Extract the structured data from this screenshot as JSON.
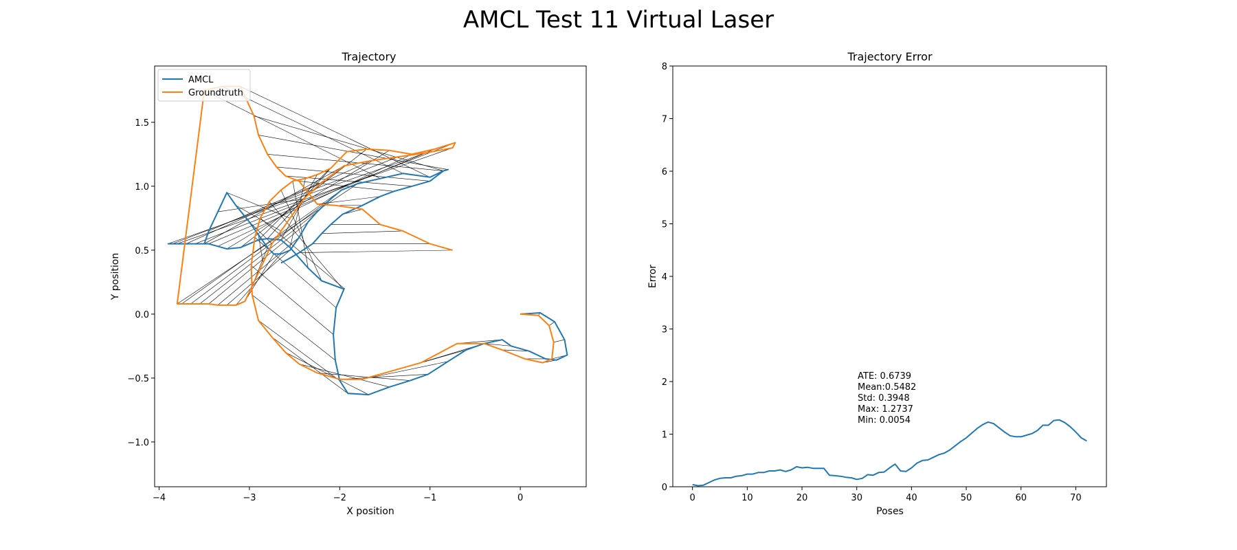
{
  "figure": {
    "title": "AMCL Test 11 Virtual Laser"
  },
  "chart_data": [
    {
      "type": "line",
      "title": "Trajectory",
      "xlabel": "X position",
      "ylabel": "Y position",
      "xlim": [
        -4.05,
        0.73
      ],
      "ylim": [
        -1.35,
        1.94
      ],
      "xticks": [
        -4,
        -3,
        -2,
        -1,
        0
      ],
      "yticks": [
        -1.0,
        -0.5,
        0.0,
        0.5,
        1.0,
        1.5
      ],
      "xtick_labels": [
        "−4",
        "−3",
        "−2",
        "−1",
        "0"
      ],
      "ytick_labels": [
        "−1.0",
        "−0.5",
        "0.0",
        "0.5",
        "1.0",
        "1.5"
      ],
      "grid": false,
      "legend": {
        "placement": "top-left",
        "entries": [
          "AMCL",
          "Groundtruth"
        ]
      },
      "series": [
        {
          "name": "AMCL",
          "color": "#1f77b4",
          "x": [
            0.0,
            0.22,
            0.38,
            0.49,
            0.52,
            0.4,
            0.28,
            0.1,
            -0.1,
            -0.2,
            -0.4,
            -0.6,
            -0.8,
            -1.02,
            -1.22,
            -1.45,
            -1.68,
            -1.91,
            -2.0,
            -2.05,
            -2.07,
            -2.04,
            -1.95,
            -1.97,
            -2.2,
            -2.35,
            -2.55,
            -2.65,
            -2.8,
            -2.9,
            -3.1,
            -3.25,
            -3.35,
            -3.45,
            -3.6,
            -3.8,
            -3.9,
            -3.85,
            -3.7,
            -3.5,
            -3.45,
            -3.35,
            -3.25,
            -3.15,
            -3.0,
            -2.9,
            -2.8,
            -2.73,
            -2.65,
            -2.55,
            -2.45,
            -2.35,
            -2.25,
            -2.1,
            -1.98,
            -1.8,
            -1.55,
            -1.3,
            -1.0,
            -0.85,
            -0.8,
            -0.85,
            -1.0,
            -1.2,
            -1.4,
            -1.55,
            -1.75,
            -1.97,
            -2.1,
            -2.2,
            -2.3,
            -2.45,
            -2.57,
            -2.65
          ],
          "y": [
            0.0,
            0.01,
            -0.06,
            -0.2,
            -0.32,
            -0.36,
            -0.35,
            -0.29,
            -0.25,
            -0.2,
            -0.23,
            -0.28,
            -0.37,
            -0.47,
            -0.52,
            -0.57,
            -0.63,
            -0.62,
            -0.52,
            -0.36,
            -0.16,
            0.05,
            0.2,
            0.2,
            0.26,
            0.36,
            0.52,
            0.58,
            0.59,
            0.58,
            0.52,
            0.51,
            0.53,
            0.55,
            0.55,
            0.55,
            0.55,
            0.55,
            0.55,
            0.55,
            0.65,
            0.8,
            0.95,
            0.85,
            0.72,
            0.62,
            0.52,
            0.47,
            0.47,
            0.5,
            0.6,
            0.72,
            0.8,
            0.9,
            0.97,
            1.02,
            1.06,
            1.1,
            1.07,
            1.12,
            1.13,
            1.12,
            1.04,
            1.0,
            0.96,
            0.92,
            0.85,
            0.78,
            0.7,
            0.63,
            0.55,
            0.48,
            0.43,
            0.4
          ]
        },
        {
          "name": "Groundtruth",
          "color": "#ff7f0e",
          "x": [
            0.0,
            0.2,
            0.32,
            0.37,
            0.35,
            0.25,
            0.05,
            -0.2,
            -0.4,
            -0.7,
            -1.1,
            -1.45,
            -1.75,
            -2.0,
            -2.25,
            -2.45,
            -2.6,
            -2.75,
            -2.9,
            -2.97,
            -2.98,
            -2.94,
            -2.88,
            -2.78,
            -2.65,
            -2.52,
            -2.38,
            -2.25,
            -2.1,
            -1.92,
            -1.7,
            -1.45,
            -1.2,
            -0.95,
            -0.72,
            -0.75,
            -1.05,
            -1.35,
            -1.65,
            -1.95,
            -2.2,
            -2.4,
            -2.55,
            -2.65,
            -2.75,
            -2.85,
            -2.97,
            -3.05,
            -3.15,
            -3.25,
            -3.35,
            -3.45,
            -3.55,
            -3.65,
            -3.75,
            -3.8,
            -3.5,
            -3.3,
            -3.1,
            -2.95,
            -2.9,
            -2.8,
            -2.7,
            -2.6,
            -2.45,
            -2.25,
            -2.05,
            -1.75,
            -1.55,
            -1.3,
            -1.0,
            -0.75
          ],
          "y": [
            0.0,
            -0.01,
            -0.09,
            -0.22,
            -0.35,
            -0.38,
            -0.35,
            -0.28,
            -0.23,
            -0.23,
            -0.38,
            -0.45,
            -0.51,
            -0.51,
            -0.46,
            -0.39,
            -0.3,
            -0.18,
            -0.05,
            0.15,
            0.38,
            0.6,
            0.75,
            0.88,
            0.97,
            1.04,
            1.06,
            1.09,
            1.14,
            1.27,
            1.29,
            1.28,
            1.25,
            1.29,
            1.34,
            1.3,
            1.26,
            1.23,
            1.2,
            1.16,
            1.03,
            0.9,
            0.75,
            0.65,
            0.55,
            0.4,
            0.22,
            0.1,
            0.07,
            0.07,
            0.07,
            0.08,
            0.08,
            0.08,
            0.08,
            0.08,
            1.75,
            1.78,
            1.78,
            1.55,
            1.4,
            1.25,
            1.15,
            1.08,
            1.04,
            0.86,
            0.85,
            0.82,
            0.7,
            0.65,
            0.55,
            0.5
          ]
        }
      ]
    },
    {
      "type": "line",
      "title": "Trajectory Error",
      "xlabel": "Poses",
      "ylabel": "Error",
      "xlim": [
        -3.6,
        75.6
      ],
      "ylim": [
        0,
        8
      ],
      "xticks": [
        0,
        10,
        20,
        30,
        40,
        50,
        60,
        70
      ],
      "yticks": [
        0,
        1,
        2,
        3,
        4,
        5,
        6,
        7,
        8
      ],
      "grid": false,
      "annotation": [
        "ATE: 0.6739",
        "Mean:0.5482",
        "Std: 0.3948",
        "Max: 1.2737",
        "Min: 0.0054"
      ],
      "series": [
        {
          "color": "#1f77b4",
          "x": [
            0,
            1,
            2,
            3,
            4,
            5,
            6,
            7,
            8,
            9,
            10,
            11,
            12,
            13,
            14,
            15,
            16,
            17,
            18,
            19,
            20,
            21,
            22,
            23,
            24,
            25,
            26,
            27,
            28,
            29,
            30,
            31,
            32,
            33,
            34,
            35,
            36,
            37,
            38,
            39,
            40,
            41,
            42,
            43,
            44,
            45,
            46,
            47,
            48,
            49,
            50,
            51,
            52,
            53,
            54,
            55,
            56,
            57,
            58,
            59,
            60,
            61,
            62,
            63,
            64,
            65,
            66,
            67,
            68,
            69,
            70,
            71,
            72
          ],
          "y": [
            0.04,
            0.02,
            0.03,
            0.08,
            0.13,
            0.16,
            0.17,
            0.17,
            0.2,
            0.21,
            0.24,
            0.24,
            0.27,
            0.27,
            0.3,
            0.3,
            0.32,
            0.29,
            0.32,
            0.38,
            0.36,
            0.37,
            0.35,
            0.35,
            0.35,
            0.22,
            0.21,
            0.2,
            0.18,
            0.17,
            0.14,
            0.16,
            0.23,
            0.22,
            0.27,
            0.28,
            0.36,
            0.43,
            0.3,
            0.29,
            0.36,
            0.45,
            0.5,
            0.51,
            0.56,
            0.61,
            0.64,
            0.7,
            0.78,
            0.86,
            0.93,
            1.02,
            1.11,
            1.18,
            1.23,
            1.2,
            1.12,
            1.04,
            0.97,
            0.95,
            0.95,
            0.98,
            1.01,
            1.07,
            1.17,
            1.17,
            1.26,
            1.27,
            1.22,
            1.14,
            1.04,
            0.93,
            0.87
          ]
        }
      ]
    }
  ]
}
